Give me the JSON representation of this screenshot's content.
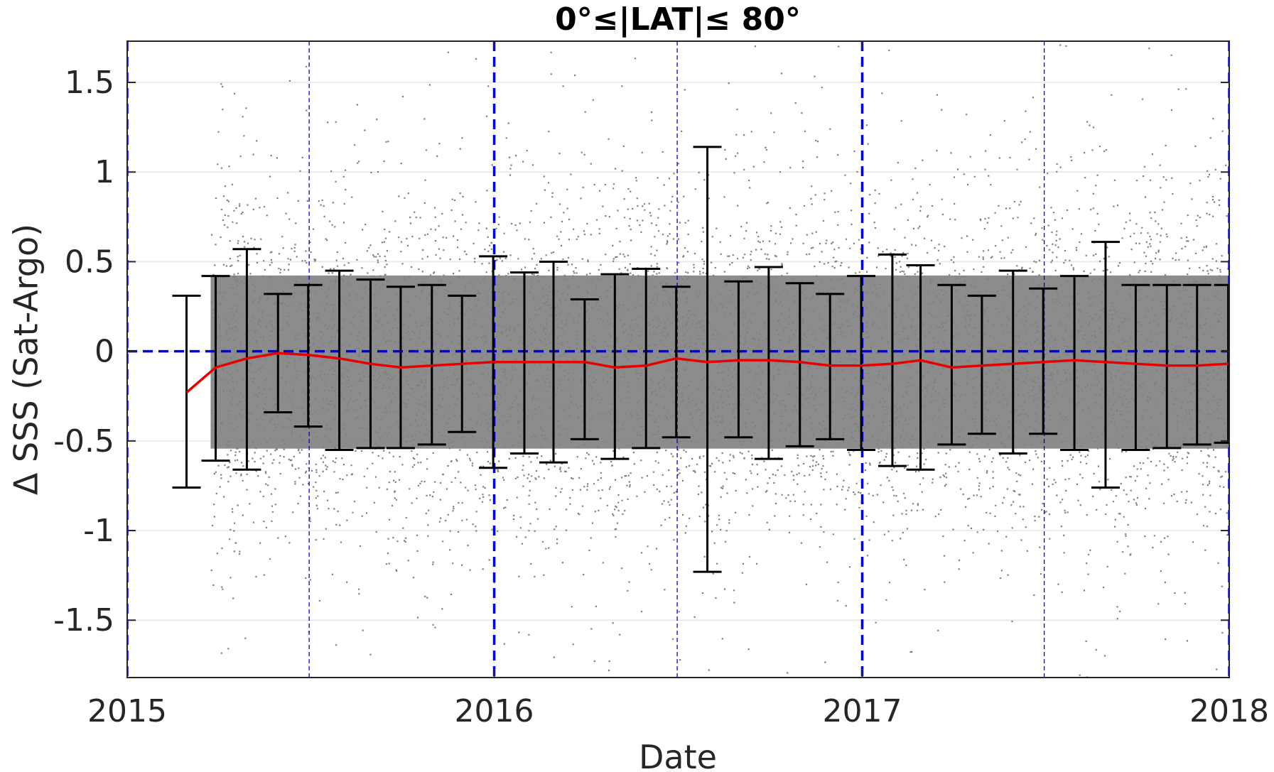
{
  "chart_data": {
    "type": "scatter",
    "title": "0°≤|LAT|≤ 80°",
    "xlabel": "Date",
    "ylabel": "Δ SSS (Sat-Argo)",
    "xlim": [
      "2015-01-01",
      "2018-01-01"
    ],
    "ylim": [
      -1.82,
      1.73
    ],
    "x_ticks": [
      {
        "date": "2015-01-01",
        "label": "2015"
      },
      {
        "date": "2016-01-01",
        "label": "2016"
      },
      {
        "date": "2017-01-01",
        "label": "2017"
      },
      {
        "date": "2018-01-01",
        "label": "2018"
      }
    ],
    "y_ticks": [
      {
        "value": -1.5,
        "label": "-1.5"
      },
      {
        "value": -1,
        "label": "-1"
      },
      {
        "value": -0.5,
        "label": "-0.5"
      },
      {
        "value": 0,
        "label": "0"
      },
      {
        "value": 0.5,
        "label": "0.5"
      },
      {
        "value": 1,
        "label": "1"
      },
      {
        "value": 1.5,
        "label": "1.5"
      }
    ],
    "grid": "horizontal",
    "reference_lines": {
      "zero_line": 0,
      "year_boundaries": [
        "2015-01-01",
        "2016-01-01",
        "2017-01-01",
        "2018-01-01"
      ],
      "mid_year": [
        "2015-07-01",
        "2016-07-01",
        "2017-07-01"
      ]
    },
    "scatter_cloud": {
      "start": "2015-03-25",
      "end": "2018-01-01",
      "center": -0.06,
      "spread": 0.42,
      "color": "#808080"
    },
    "series": [
      {
        "kind": "mean",
        "color": "#e60000",
        "points": [
          {
            "date": "2015-03-01",
            "value": -0.23
          },
          {
            "date": "2015-03-30",
            "value": -0.09
          },
          {
            "date": "2015-04-30",
            "value": -0.04
          },
          {
            "date": "2015-05-31",
            "value": -0.01
          },
          {
            "date": "2015-06-30",
            "value": -0.02
          },
          {
            "date": "2015-07-31",
            "value": -0.04
          },
          {
            "date": "2015-08-31",
            "value": -0.07
          },
          {
            "date": "2015-09-30",
            "value": -0.09
          },
          {
            "date": "2015-10-31",
            "value": -0.08
          },
          {
            "date": "2015-11-30",
            "value": -0.07
          },
          {
            "date": "2015-12-31",
            "value": -0.06
          },
          {
            "date": "2016-01-31",
            "value": -0.06
          },
          {
            "date": "2016-02-29",
            "value": -0.06
          },
          {
            "date": "2016-03-31",
            "value": -0.06
          },
          {
            "date": "2016-04-30",
            "value": -0.09
          },
          {
            "date": "2016-05-31",
            "value": -0.08
          },
          {
            "date": "2016-06-30",
            "value": -0.04
          },
          {
            "date": "2016-07-31",
            "value": -0.06
          },
          {
            "date": "2016-08-31",
            "value": -0.05
          },
          {
            "date": "2016-09-30",
            "value": -0.05
          },
          {
            "date": "2016-10-31",
            "value": -0.06
          },
          {
            "date": "2016-11-30",
            "value": -0.08
          },
          {
            "date": "2016-12-31",
            "value": -0.08
          },
          {
            "date": "2017-01-31",
            "value": -0.07
          },
          {
            "date": "2017-02-28",
            "value": -0.05
          },
          {
            "date": "2017-03-31",
            "value": -0.09
          },
          {
            "date": "2017-04-30",
            "value": -0.08
          },
          {
            "date": "2017-05-31",
            "value": -0.07
          },
          {
            "date": "2017-06-30",
            "value": -0.06
          },
          {
            "date": "2017-07-31",
            "value": -0.05
          },
          {
            "date": "2017-08-31",
            "value": -0.06
          },
          {
            "date": "2017-09-30",
            "value": -0.07
          },
          {
            "date": "2017-10-31",
            "value": -0.08
          },
          {
            "date": "2017-11-30",
            "value": -0.08
          },
          {
            "date": "2017-12-31",
            "value": -0.07
          }
        ]
      },
      {
        "kind": "error_bars",
        "color": "#000000",
        "bars": [
          {
            "date": "2015-03-01",
            "low": -0.76,
            "high": 0.31
          },
          {
            "date": "2015-03-30",
            "low": -0.61,
            "high": 0.42
          },
          {
            "date": "2015-04-30",
            "low": -0.66,
            "high": 0.57
          },
          {
            "date": "2015-05-31",
            "low": -0.34,
            "high": 0.32
          },
          {
            "date": "2015-06-30",
            "low": -0.42,
            "high": 0.37
          },
          {
            "date": "2015-07-31",
            "low": -0.55,
            "high": 0.45
          },
          {
            "date": "2015-08-31",
            "low": -0.54,
            "high": 0.4
          },
          {
            "date": "2015-09-30",
            "low": -0.54,
            "high": 0.36
          },
          {
            "date": "2015-10-31",
            "low": -0.52,
            "high": 0.37
          },
          {
            "date": "2015-11-30",
            "low": -0.45,
            "high": 0.31
          },
          {
            "date": "2015-12-31",
            "low": -0.65,
            "high": 0.53
          },
          {
            "date": "2016-01-31",
            "low": -0.57,
            "high": 0.44
          },
          {
            "date": "2016-02-29",
            "low": -0.62,
            "high": 0.5
          },
          {
            "date": "2016-03-31",
            "low": -0.49,
            "high": 0.29
          },
          {
            "date": "2016-04-30",
            "low": -0.6,
            "high": 0.43
          },
          {
            "date": "2016-05-31",
            "low": -0.54,
            "high": 0.46
          },
          {
            "date": "2016-06-30",
            "low": -0.48,
            "high": 0.36
          },
          {
            "date": "2016-07-31",
            "low": -1.23,
            "high": 1.14
          },
          {
            "date": "2016-08-31",
            "low": -0.48,
            "high": 0.39
          },
          {
            "date": "2016-09-30",
            "low": -0.6,
            "high": 0.47
          },
          {
            "date": "2016-10-31",
            "low": -0.53,
            "high": 0.38
          },
          {
            "date": "2016-11-30",
            "low": -0.49,
            "high": 0.32
          },
          {
            "date": "2016-12-31",
            "low": -0.55,
            "high": 0.42
          },
          {
            "date": "2017-01-31",
            "low": -0.64,
            "high": 0.54
          },
          {
            "date": "2017-02-28",
            "low": -0.66,
            "high": 0.48
          },
          {
            "date": "2017-03-31",
            "low": -0.52,
            "high": 0.37
          },
          {
            "date": "2017-04-30",
            "low": -0.46,
            "high": 0.31
          },
          {
            "date": "2017-05-31",
            "low": -0.57,
            "high": 0.45
          },
          {
            "date": "2017-06-30",
            "low": -0.46,
            "high": 0.35
          },
          {
            "date": "2017-07-31",
            "low": -0.55,
            "high": 0.42
          },
          {
            "date": "2017-08-31",
            "low": -0.76,
            "high": 0.61
          },
          {
            "date": "2017-09-30",
            "low": -0.55,
            "high": 0.37
          },
          {
            "date": "2017-10-31",
            "low": -0.54,
            "high": 0.37
          },
          {
            "date": "2017-11-30",
            "low": -0.52,
            "high": 0.37
          },
          {
            "date": "2017-12-31",
            "low": -0.51,
            "high": 0.37
          }
        ]
      }
    ]
  }
}
